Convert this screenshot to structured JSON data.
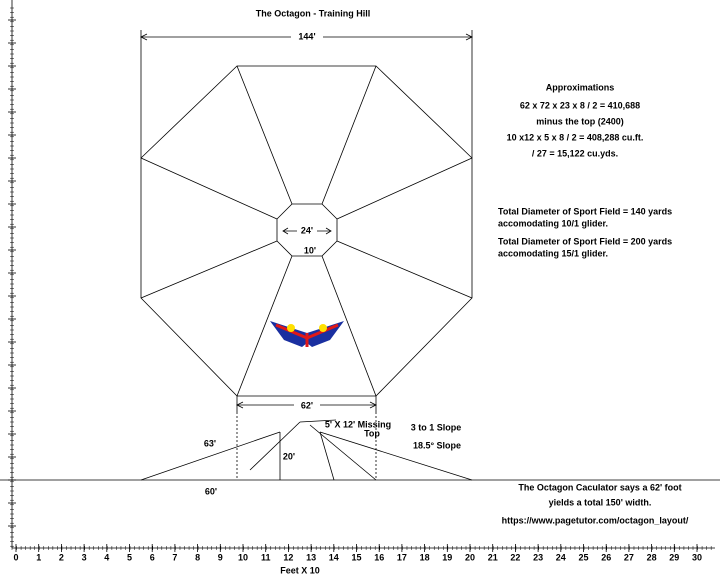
{
  "title": "The Octagon - Training Hill",
  "dimensions": {
    "width": "144'",
    "inner": "24'",
    "inner_side": "10'",
    "base": "62'",
    "slope_length": "63'",
    "height": "20'",
    "half_base": "60'",
    "missing_top": [
      "5' X 12' Missing",
      "Top"
    ],
    "slope": [
      "3 to 1 Slope",
      "18.5°  Slope"
    ]
  },
  "approximations": [
    "Approximations",
    "62 x 72 x 23 x 8 / 2 = 410,688",
    "minus the top (2400)",
    "10 x12 x 5 x 8 / 2 = 408,288 cu.ft.",
    "/ 27 =  15,122 cu.yds."
  ],
  "sport_field": [
    "Total Diameter of Sport Field = 140 yards",
    "accomodating 10/1 glider.",
    "Total Diameter of Sport Field =  200 yards",
    "accomodating 15/1 glider."
  ],
  "calculator_note": [
    "The Octagon Caculator says a 62' foot",
    "yields a total 150' width.",
    "https://www.pagetutor.com/octagon_layout/"
  ],
  "ruler": {
    "labels": [
      "0",
      "1",
      "2",
      "3",
      "4",
      "5",
      "6",
      "7",
      "8",
      "9",
      "10",
      "11",
      "12",
      "13",
      "14",
      "15",
      "16",
      "17",
      "18",
      "19",
      "20",
      "21",
      "22",
      "23",
      "24",
      "25",
      "26",
      "27",
      "28",
      "29",
      "30"
    ],
    "axis_label": "Feet X 10"
  }
}
